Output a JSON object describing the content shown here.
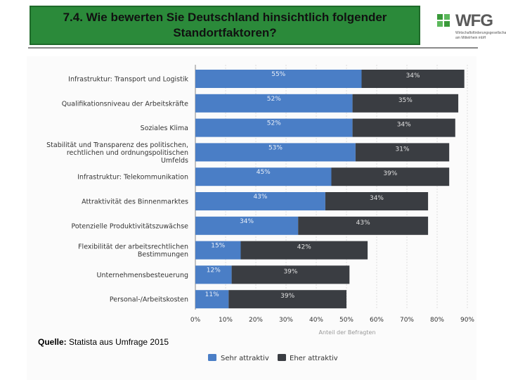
{
  "header": {
    "title_line1": "7.4.  Wie bewerten Sie Deutschland hinsichtlich folgender",
    "title_line2": "Standortfaktoren?"
  },
  "logo": {
    "text": "WFG",
    "subtitle_line1": "Wirtschaftsförderungsgesellschaft",
    "subtitle_line2": "am Mittelrhein mbH"
  },
  "source": {
    "label": "Quelle:",
    "text": "Statista aus Umfrage 2015"
  },
  "colors": {
    "series1": "#4a7ec6",
    "series2": "#3a3d42",
    "title_bg": "#2b8a3a"
  },
  "chart_data": {
    "type": "bar",
    "orientation": "horizontal",
    "stacked": true,
    "categories": [
      [
        "Infrastruktur: Transport und Logistik"
      ],
      [
        "Qualifikationsniveau der Arbeitskräfte"
      ],
      [
        "Soziales Klima"
      ],
      [
        "Stabilität und Transparenz des politischen,",
        "rechtlichen und ordnungspolitischen",
        "Umfelds"
      ],
      [
        "Infrastruktur: Telekommunikation"
      ],
      [
        "Attraktivität des Binnenmarktes"
      ],
      [
        "Potenzielle Produktivitätszuwächse"
      ],
      [
        "Flexibilität der arbeitsrechtlichen",
        "Bestimmungen"
      ],
      [
        "Unternehmensbesteuerung"
      ],
      [
        "Personal-/Arbeitskosten"
      ]
    ],
    "series": [
      {
        "name": "Sehr attraktiv",
        "values": [
          55,
          52,
          52,
          53,
          45,
          43,
          34,
          15,
          12,
          11
        ],
        "labels": [
          "55%",
          "52%",
          "52%",
          "53%",
          "45%",
          "43%",
          "34%",
          "15%",
          "12%",
          "11%"
        ]
      },
      {
        "name": "Eher attraktiv",
        "values": [
          34,
          35,
          34,
          31,
          39,
          34,
          43,
          42,
          39,
          39
        ],
        "labels": [
          "34%",
          "35%",
          "34%",
          "31%",
          "39%",
          "34%",
          "43%",
          "42%",
          "39%",
          "39%"
        ]
      }
    ],
    "xlim": [
      0,
      90
    ],
    "xticks": [
      0,
      10,
      20,
      30,
      40,
      50,
      60,
      70,
      80,
      90
    ],
    "xtick_labels": [
      "0%",
      "10%",
      "20%",
      "30%",
      "40%",
      "50%",
      "60%",
      "70%",
      "80%",
      "90%"
    ],
    "xlabel": "Anteil der Befragten",
    "legend_position": "bottom-center"
  }
}
